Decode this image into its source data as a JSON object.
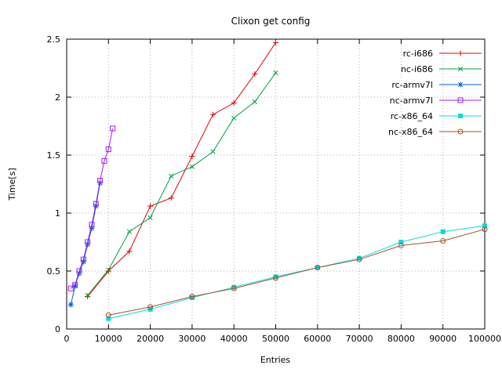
{
  "chart_data": {
    "type": "line",
    "title": "Clixon get config",
    "xlabel": "Entries",
    "ylabel": "Time[s]",
    "xlim": [
      0,
      100000
    ],
    "ylim": [
      0,
      2.5
    ],
    "xticks": [
      0,
      10000,
      20000,
      30000,
      40000,
      50000,
      60000,
      70000,
      80000,
      90000,
      100000
    ],
    "yticks": [
      0,
      0.5,
      1,
      1.5,
      2,
      2.5
    ],
    "grid": true,
    "grid_style": "dotted",
    "legend_position": "top-right-inside",
    "colors": {
      "grid": "#b0b0b0",
      "border": "#000000",
      "background": "#ffffff"
    },
    "series": [
      {
        "name": "rc-i686",
        "color": "#e60000",
        "marker": "plus",
        "points": [
          [
            5000,
            0.28
          ],
          [
            10000,
            0.5
          ],
          [
            15000,
            0.67
          ],
          [
            20000,
            1.06
          ],
          [
            25000,
            1.13
          ],
          [
            30000,
            1.49
          ],
          [
            35000,
            1.85
          ],
          [
            40000,
            1.95
          ],
          [
            45000,
            2.2
          ],
          [
            50000,
            2.47
          ]
        ]
      },
      {
        "name": "nc-i686",
        "color": "#00a040",
        "marker": "x",
        "points": [
          [
            5000,
            0.29
          ],
          [
            10000,
            0.51
          ],
          [
            15000,
            0.84
          ],
          [
            20000,
            0.96
          ],
          [
            25000,
            1.32
          ],
          [
            30000,
            1.4
          ],
          [
            35000,
            1.53
          ],
          [
            40000,
            1.82
          ],
          [
            45000,
            1.96
          ],
          [
            50000,
            2.21
          ]
        ]
      },
      {
        "name": "rc-armv7l",
        "color": "#0060d0",
        "marker": "star",
        "points": [
          [
            1000,
            0.21
          ],
          [
            2000,
            0.37
          ],
          [
            3000,
            0.48
          ],
          [
            4000,
            0.58
          ],
          [
            5000,
            0.73
          ],
          [
            6000,
            0.87
          ],
          [
            7000,
            1.06
          ],
          [
            8000,
            1.26
          ]
        ]
      },
      {
        "name": "nc-armv7l",
        "color": "#a020f0",
        "marker": "open-square",
        "points": [
          [
            1000,
            0.35
          ],
          [
            2000,
            0.38
          ],
          [
            3000,
            0.5
          ],
          [
            4000,
            0.6
          ],
          [
            5000,
            0.75
          ],
          [
            6000,
            0.9
          ],
          [
            7000,
            1.08
          ],
          [
            8000,
            1.28
          ],
          [
            9000,
            1.45
          ],
          [
            10000,
            1.55
          ],
          [
            11000,
            1.73
          ]
        ]
      },
      {
        "name": "rc-x86_64",
        "color": "#00dddd",
        "marker": "filled-square",
        "points": [
          [
            10000,
            0.09
          ],
          [
            20000,
            0.17
          ],
          [
            30000,
            0.27
          ],
          [
            40000,
            0.36
          ],
          [
            50000,
            0.45
          ],
          [
            60000,
            0.53
          ],
          [
            70000,
            0.61
          ],
          [
            80000,
            0.75
          ],
          [
            90000,
            0.84
          ],
          [
            100000,
            0.89
          ]
        ]
      },
      {
        "name": "nc-x86_64",
        "color": "#a0522d",
        "marker": "open-circle",
        "points": [
          [
            10000,
            0.12
          ],
          [
            20000,
            0.19
          ],
          [
            30000,
            0.28
          ],
          [
            40000,
            0.35
          ],
          [
            50000,
            0.44
          ],
          [
            60000,
            0.53
          ],
          [
            70000,
            0.6
          ],
          [
            80000,
            0.72
          ],
          [
            90000,
            0.76
          ],
          [
            100000,
            0.86
          ]
        ]
      }
    ]
  }
}
